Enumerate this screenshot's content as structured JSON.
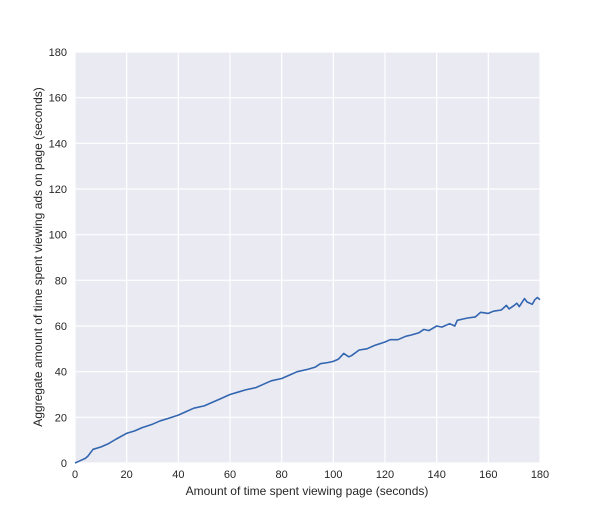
{
  "chart_data": {
    "type": "line",
    "title": "",
    "xlabel": "Amount of time spent viewing page (seconds)",
    "ylabel": "Aggregate amount of time spent viewing ads on page (seconds)",
    "xlim": [
      0,
      180
    ],
    "ylim": [
      0,
      180
    ],
    "xticks": [
      0,
      20,
      40,
      60,
      80,
      100,
      120,
      140,
      160,
      180
    ],
    "yticks": [
      0,
      20,
      40,
      60,
      80,
      100,
      120,
      140,
      160,
      180
    ],
    "grid": true,
    "background": "#eaeaf2",
    "line_color": "#3366b0",
    "series": [
      {
        "x": [
          0,
          2,
          4,
          5,
          7,
          10,
          13,
          16,
          20,
          23,
          26,
          30,
          33,
          36,
          40,
          43,
          46,
          50,
          53,
          56,
          60,
          63,
          66,
          70,
          73,
          76,
          80,
          83,
          86,
          90,
          93,
          95,
          98,
          100,
          102,
          104,
          106,
          107,
          110,
          113,
          116,
          120,
          122,
          125,
          128,
          130,
          133,
          135,
          137,
          140,
          142,
          145,
          147,
          148,
          150,
          152,
          155,
          157,
          160,
          162,
          165,
          167,
          168,
          170,
          171,
          172,
          174,
          175,
          177,
          178,
          179,
          180
        ],
        "y": [
          0,
          1,
          2,
          3,
          6,
          7,
          8.5,
          10.5,
          13,
          14,
          15.5,
          17,
          18.5,
          19.5,
          21,
          22.5,
          24,
          25,
          26.5,
          28,
          30,
          31,
          32,
          33,
          34.5,
          36,
          37,
          38.5,
          40,
          41,
          42,
          43.5,
          44,
          44.5,
          45.5,
          48,
          46.5,
          47,
          49.5,
          50,
          51.5,
          53,
          54,
          54,
          55.5,
          56,
          57,
          58.5,
          58,
          60,
          59.5,
          61,
          60,
          62.5,
          63,
          63.5,
          64,
          66,
          65.5,
          66.5,
          67,
          69,
          67.5,
          69,
          70,
          68.5,
          72,
          70.5,
          69.5,
          71.5,
          72.5,
          71.5
        ]
      }
    ]
  }
}
